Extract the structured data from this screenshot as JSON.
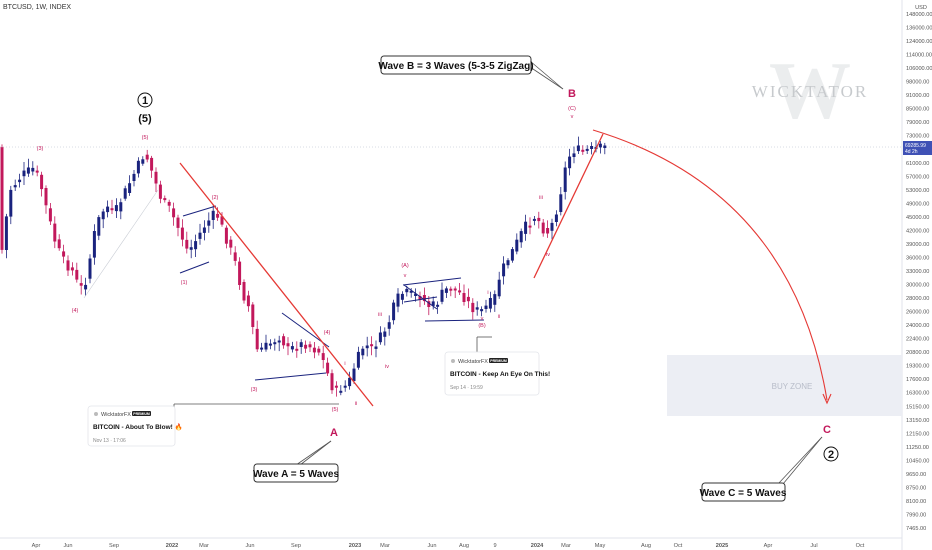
{
  "header": {
    "symbol_line": "BTCUSD, 1W, INDEX"
  },
  "price_axis": {
    "currency": "USD",
    "labels": [
      "148000.00",
      "136000.00",
      "124000.00",
      "114000.00",
      "106000.00",
      "98000.00",
      "91000.00",
      "85000.00",
      "79000.00",
      "73000.00",
      "67000.00",
      "61000.00",
      "57000.00",
      "53000.00",
      "49000.00",
      "45000.00",
      "42000.00",
      "39000.00",
      "36000.00",
      "33000.00",
      "30000.00",
      "28000.00",
      "26000.00",
      "24000.00",
      "22400.00",
      "20800.00",
      "19300.00",
      "17600.00",
      "16300.00",
      "15150.00",
      "13150.00",
      "12150.00",
      "11250.00",
      "10450.00",
      "9650.00",
      "8750.00",
      "8100.00",
      "7990.00",
      "7465.00"
    ],
    "current_price": "69285.99",
    "countdown": "4d 2h"
  },
  "time_axis": {
    "labels": [
      "Apr",
      "Jun",
      "Sep",
      "2022",
      "Mar",
      "Jun",
      "Sep",
      "2023",
      "Mar",
      "Jun",
      "Aug",
      "9",
      "2024",
      "Mar",
      "May",
      "Aug",
      "Oct",
      "2025",
      "Apr",
      "Jul",
      "Oct"
    ]
  },
  "watermark": {
    "text": "WICKTATOR",
    "monogram": "W"
  },
  "wave_labels": {
    "i3": "(3)",
    "i4": "(4)",
    "i5": "(5)",
    "l1": "(1)",
    "l2": "(2)",
    "l3": "(3)",
    "l4": "(4)",
    "l5": "(5)",
    "i_a": "i",
    "i_b": "ii",
    "i_c": "iii",
    "i_d": "iv",
    "i_e": "v",
    "mA": "(A)",
    "mAv": "v",
    "mB": "(B)",
    "mBv": "v",
    "m_i": "i",
    "m_ii": "ii",
    "m_iii": "iii",
    "m_iv": "iv",
    "r_iii": "iii",
    "r_iv": "iv",
    "r_C": "(C)",
    "r_v": "v"
  },
  "major": {
    "circle1": "1",
    "paren5": "(5)",
    "A": "A",
    "B": "B",
    "C": "C",
    "circle2": "2"
  },
  "callouts": {
    "waveA": "Wave A = 5 Waves",
    "waveB": "Wave B = 3 Waves (5-3-5 ZigZag)",
    "waveC": "Wave C = 5 Waves"
  },
  "cards": [
    {
      "brand": "WicktatorFX",
      "badge": "PREMIUM",
      "title": "BITCOIN - About To Blow! 🔥",
      "date": "Nov 13 · 17:06"
    },
    {
      "brand": "WicktatorFX",
      "badge": "PREMIUM",
      "title": "BITCOIN - Keep An Eye On This!",
      "date": "Sep 14 · 19:59"
    }
  ],
  "buy_zone": {
    "label": "BUY ZONE"
  },
  "colors": {
    "bull": "#1a237e",
    "bear": "#c2185b",
    "trend": "#e53935",
    "buyzone": "#eceef4"
  }
}
